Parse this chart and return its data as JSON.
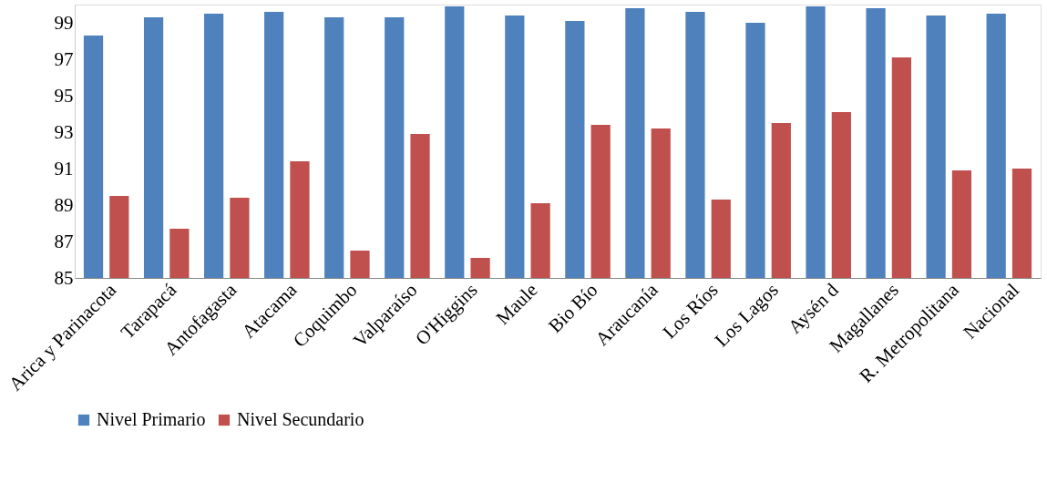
{
  "chart_data": {
    "type": "bar",
    "categories": [
      "Arica y Parinacota",
      "Tarapacá",
      "Antofagasta",
      "Atacama",
      "Coquimbo",
      "Valparaíso",
      "O'Higgins",
      "Maule",
      "Bio Bío",
      "Araucanía",
      "Los Ríos",
      "Los Lagos",
      "Aysén d",
      "Magallanes",
      "R. Metropolitana",
      "Nacional"
    ],
    "series": [
      {
        "name": "Nivel Primario",
        "color": "#4f81bd",
        "values": [
          98.3,
          99.3,
          99.5,
          99.6,
          99.3,
          99.3,
          99.9,
          99.4,
          99.1,
          99.8,
          99.6,
          99.0,
          99.9,
          99.8,
          99.4,
          99.5
        ]
      },
      {
        "name": "Nivel Secundario",
        "color": "#c0504d",
        "values": [
          89.5,
          87.7,
          89.4,
          91.4,
          86.5,
          92.9,
          86.1,
          89.1,
          93.4,
          93.2,
          89.3,
          93.5,
          94.1,
          97.1,
          90.9,
          91.0
        ]
      }
    ],
    "ylim": [
      85,
      100
    ],
    "yticks": [
      85,
      87,
      89,
      91,
      93,
      95,
      97,
      99
    ],
    "grid": false,
    "legend": "bottom"
  }
}
